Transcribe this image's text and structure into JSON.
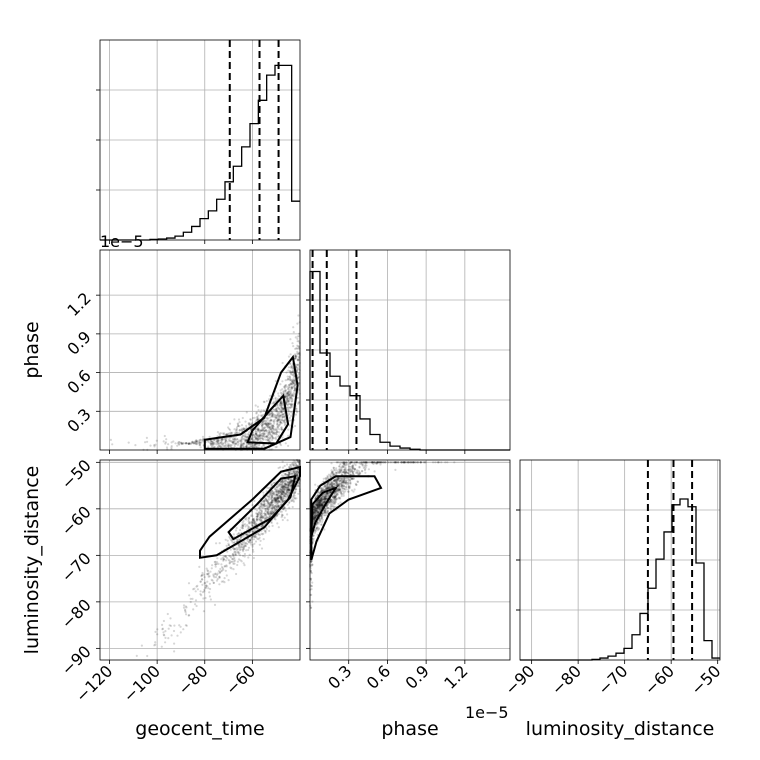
{
  "chart_data": {
    "type": "corner",
    "parameters": [
      {
        "name": "geocent_time",
        "range": [
          -124,
          -40
        ],
        "ticks": [
          -120,
          -100,
          -80,
          -60
        ],
        "tick_labels": [
          "−120",
          "−100",
          "−80",
          "−60"
        ],
        "quantiles": [
          -69.5,
          -57,
          -49
        ],
        "offset_text": ""
      },
      {
        "name": "phase",
        "range": [
          0,
          1.55e-05
        ],
        "ticks": [
          3e-06,
          6e-06,
          9e-06,
          1.2e-05
        ],
        "tick_labels": [
          "0.3",
          "0.6",
          "0.9",
          "1.2"
        ],
        "quantiles": [
          2e-07,
          1.3e-06,
          3.6e-06
        ],
        "offset_text": "1e−5"
      },
      {
        "name": "luminosity_distance",
        "range": [
          -92.5,
          -49.5
        ],
        "ticks": [
          -90,
          -80,
          -70,
          -60,
          -50
        ],
        "tick_labels": [
          "−90",
          "−80",
          "−70",
          "−60",
          "−50"
        ],
        "quantiles": [
          -65,
          -59.5,
          -55.5
        ],
        "offset_text": ""
      }
    ],
    "histograms": {
      "geocent_time": [
        0,
        0,
        0,
        0,
        0,
        0,
        0.003,
        0.005,
        0.01,
        0.02,
        0.04,
        0.07,
        0.11,
        0.15,
        0.21,
        0.3,
        0.38,
        0.48,
        0.6,
        0.72,
        0.85,
        0.9,
        0.9,
        0.2
      ],
      "phase": [
        0.92,
        0.5,
        0.38,
        0.33,
        0.28,
        0.16,
        0.08,
        0.04,
        0.02,
        0.01,
        0.004,
        0,
        0,
        0,
        0,
        0,
        0,
        0,
        0,
        0
      ],
      "luminosity_distance": [
        0,
        0,
        0,
        0,
        0,
        0,
        0,
        0,
        0,
        0.003,
        0.01,
        0.02,
        0.035,
        0.06,
        0.13,
        0.24,
        0.37,
        0.52,
        0.66,
        0.8,
        0.83,
        0.79,
        0.5,
        0.1,
        0.01
      ]
    },
    "grid": true,
    "legend": "none"
  }
}
